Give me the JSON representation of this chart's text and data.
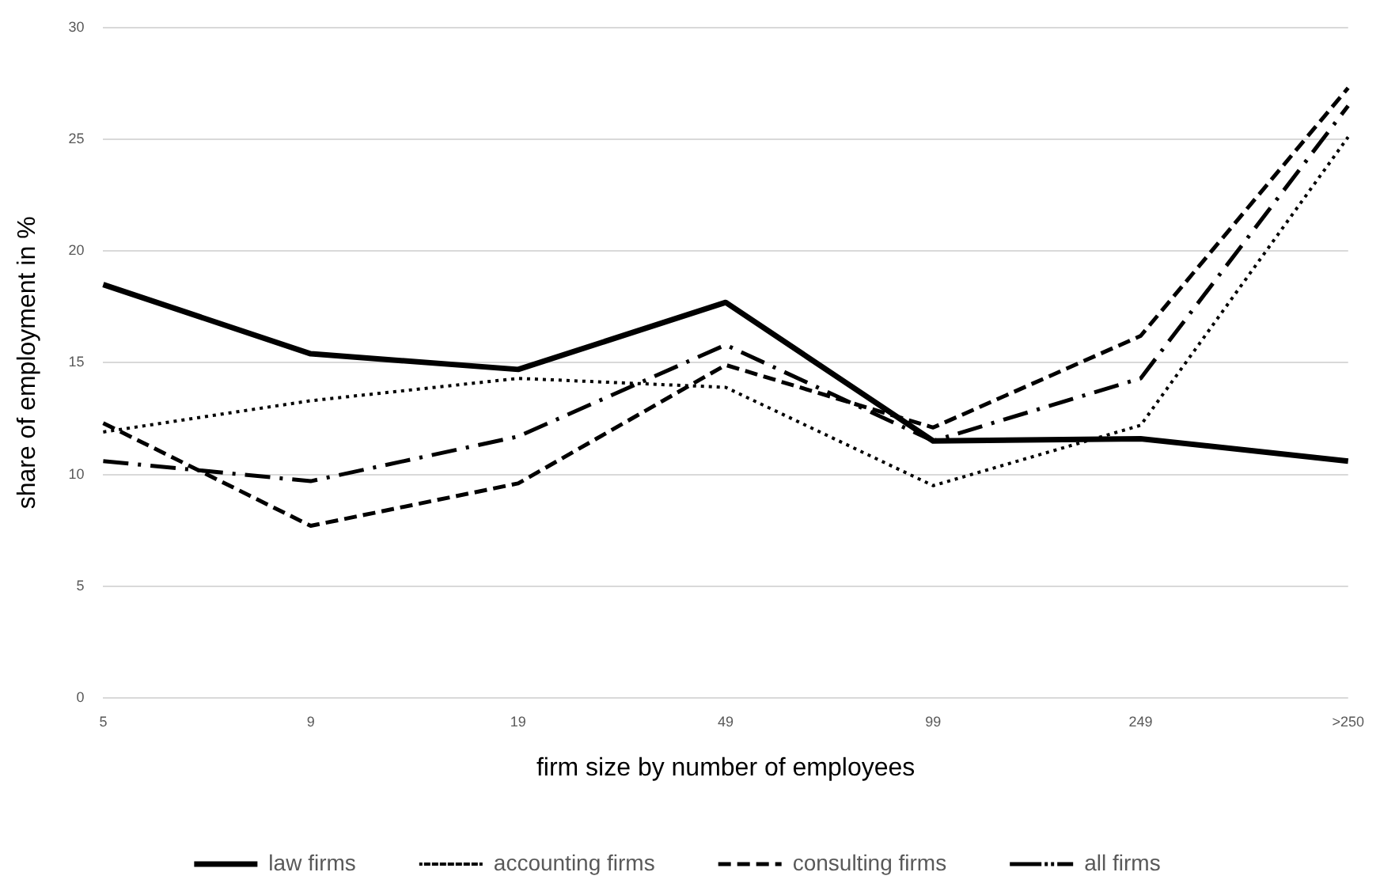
{
  "chart_data": {
    "type": "line",
    "xlabel": "firm size by number of employees",
    "ylabel": "share of employment in %",
    "categories": [
      "5",
      "9",
      "19",
      "49",
      "99",
      "249",
      ">250"
    ],
    "series": [
      {
        "name": "law firms",
        "color": "#000000",
        "line_style": "solid",
        "values": [
          18.5,
          15.4,
          14.7,
          17.7,
          11.5,
          11.6,
          10.6
        ]
      },
      {
        "name": "accounting firms",
        "color": "#000000",
        "line_style": "dotted",
        "values": [
          11.9,
          13.3,
          14.3,
          13.9,
          9.5,
          12.2,
          25.1
        ]
      },
      {
        "name": "consulting firms",
        "color": "#000000",
        "line_style": "dashed",
        "values": [
          12.3,
          7.7,
          9.6,
          14.9,
          12.1,
          16.2,
          27.3
        ]
      },
      {
        "name": "all firms",
        "color": "#000000",
        "line_style": "dashdot",
        "values": [
          10.6,
          9.7,
          11.7,
          15.8,
          11.5,
          14.3,
          26.5
        ]
      }
    ],
    "ylim": [
      0,
      30
    ],
    "yticks": [
      0,
      5,
      10,
      15,
      20,
      25,
      30
    ],
    "grid": "y",
    "legend": "bottom",
    "marker": "none"
  }
}
